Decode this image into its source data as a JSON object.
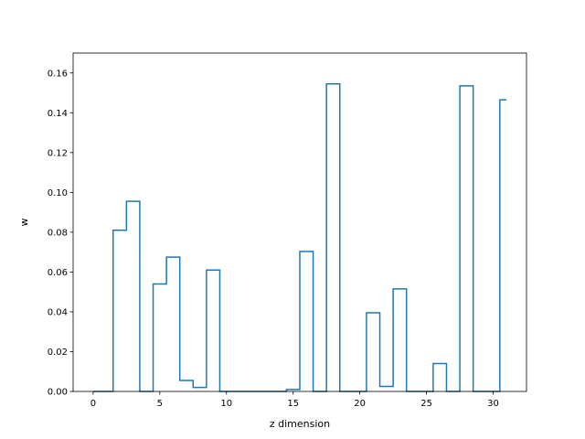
{
  "chart_data": {
    "type": "step",
    "step_where": "mid",
    "xlabel": "z dimension",
    "ylabel": "w",
    "xlim": [
      -1.5,
      32.5
    ],
    "ylim": [
      0.0,
      0.17
    ],
    "xticks": [
      0,
      5,
      10,
      15,
      20,
      25,
      30
    ],
    "xtick_labels": [
      "0",
      "5",
      "10",
      "15",
      "20",
      "25",
      "30"
    ],
    "yticks": [
      0.0,
      0.02,
      0.04,
      0.06,
      0.08,
      0.1,
      0.12,
      0.14,
      0.16
    ],
    "ytick_labels": [
      "0.00",
      "0.02",
      "0.04",
      "0.06",
      "0.08",
      "0.10",
      "0.12",
      "0.14",
      "0.16"
    ],
    "grid": false,
    "line_color": "#1f77b4",
    "x": [
      0,
      1,
      2,
      3,
      4,
      5,
      6,
      7,
      8,
      9,
      10,
      11,
      12,
      13,
      14,
      15,
      16,
      17,
      18,
      19,
      20,
      21,
      22,
      23,
      24,
      25,
      26,
      27,
      28,
      29,
      30,
      31
    ],
    "values": [
      0.0,
      0.0,
      0.081,
      0.0955,
      0.0,
      0.054,
      0.0675,
      0.0055,
      0.002,
      0.061,
      0.0,
      0.0,
      0.0,
      0.0,
      0.0,
      0.001,
      0.0703,
      0.0,
      0.1545,
      0.0,
      0.0,
      0.0395,
      0.0025,
      0.0515,
      0.0,
      0.0,
      0.014,
      0.0,
      0.1535,
      0.0,
      0.0,
      0.1465
    ]
  }
}
